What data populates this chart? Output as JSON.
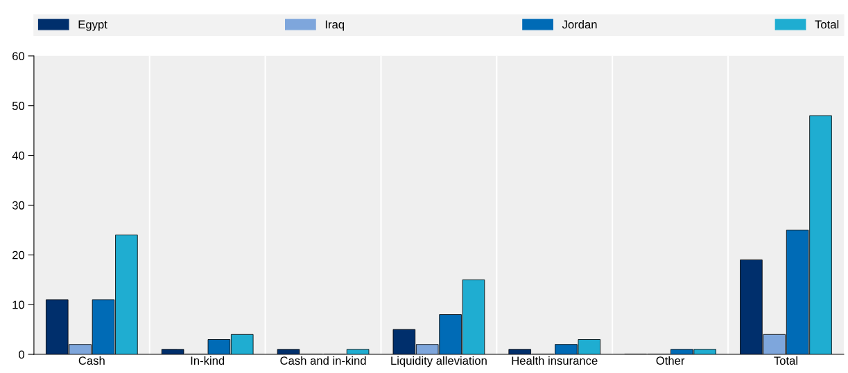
{
  "chart_data": {
    "type": "bar",
    "categories": [
      "Cash",
      "In-kind",
      "Cash and in-kind",
      "Liquidity alleviation",
      "Health insurance",
      "Other",
      "Total"
    ],
    "series": [
      {
        "name": "Egypt",
        "color": "#002f6c",
        "values": [
          11,
          1,
          1,
          5,
          1,
          0,
          19
        ]
      },
      {
        "name": "Iraq",
        "color": "#7ea6dc",
        "values": [
          2,
          0,
          0,
          2,
          0,
          0,
          4
        ]
      },
      {
        "name": "Jordan",
        "color": "#006bb6",
        "values": [
          11,
          3,
          0,
          8,
          2,
          1,
          25
        ]
      },
      {
        "name": "Total",
        "color": "#1fadd1",
        "values": [
          24,
          4,
          1,
          15,
          3,
          1,
          48
        ]
      }
    ],
    "ylim": [
      0,
      60
    ],
    "yticks": [
      0,
      10,
      20,
      30,
      40,
      50,
      60
    ],
    "grid": "x",
    "legend": "top"
  }
}
